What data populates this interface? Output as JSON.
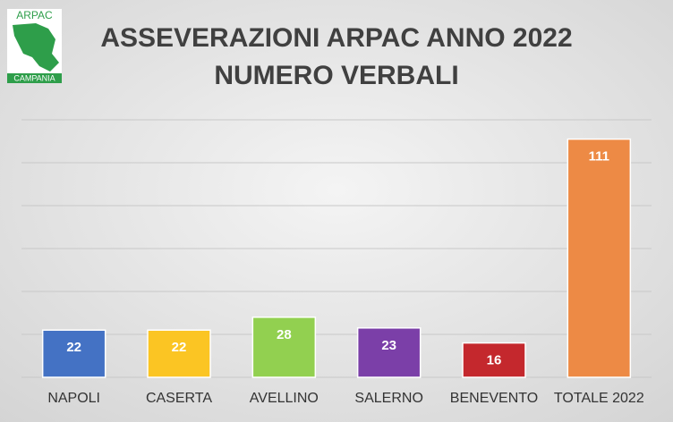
{
  "logo": {
    "top": "ARPAC",
    "bottom": "CAMPANIA"
  },
  "chart_data": {
    "type": "bar",
    "title": "ASSEVERAZIONI ARPAC ANNO 2022",
    "subtitle": "NUMERO VERBALI",
    "categories": [
      "NAPOLI",
      "CASERTA",
      "AVELLINO",
      "SALERNO",
      "BENEVENTO",
      "TOTALE 2022"
    ],
    "values": [
      22,
      22,
      28,
      23,
      16,
      111
    ],
    "colors": [
      "#4472c4",
      "#fbc523",
      "#92d050",
      "#7b3fa8",
      "#c4282d",
      "#ed8a45"
    ],
    "ylim": [
      0,
      120
    ],
    "yticks": [
      0,
      20,
      40,
      60,
      80,
      100,
      120
    ],
    "grid": true
  }
}
